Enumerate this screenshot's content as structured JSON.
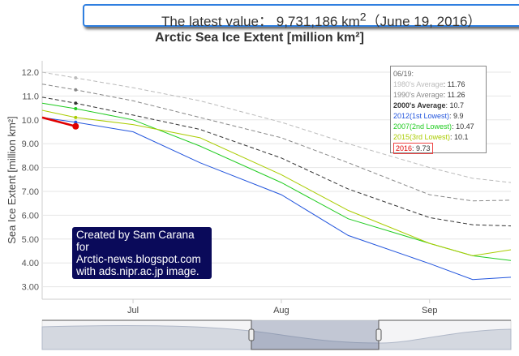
{
  "header": {
    "latest_label": "The latest value：",
    "latest_value": "9,731,186",
    "latest_unit": "km",
    "latest_sup": "2",
    "latest_date": "（June 19, 2016）"
  },
  "credit": [
    "Created by Sam Carana for",
    "Arctic-news.blogspot.com",
    "with ads.nipr.ac.jp image."
  ],
  "chart_data": {
    "type": "line",
    "title": "Arctic Sea Ice Extent [million km²]",
    "ylabel": "Sea Ice Extent [million km²]",
    "ylim": [
      2.5,
      12.5
    ],
    "yticks": [
      "12.0",
      "11.0",
      "10.0",
      "9.00",
      "8.00",
      "7.00",
      "6.00",
      "5.00",
      "4.00",
      "3.00"
    ],
    "ytick_values": [
      12,
      11,
      10,
      9,
      8,
      7,
      6,
      5,
      4,
      3
    ],
    "xlim": [
      "2016-06-12",
      "2016-09-18"
    ],
    "xticks": [
      {
        "label": "Jul",
        "date": "2016-07-01"
      },
      {
        "label": "Aug",
        "date": "2016-08-01"
      },
      {
        "label": "Sep",
        "date": "2016-09-01"
      }
    ],
    "grid": "horizontal",
    "legend": {
      "date_label": "06/19:",
      "placement": "top-right"
    },
    "dates": [
      "2016-06-12",
      "2016-06-19",
      "2016-07-01",
      "2016-07-15",
      "2016-08-01",
      "2016-08-15",
      "2016-09-01",
      "2016-09-10",
      "2016-09-18"
    ],
    "series": [
      {
        "name": "1980's Average",
        "color": "#bbbbbb",
        "dash": true,
        "value_0619": "11.76",
        "values": [
          12.0,
          11.76,
          11.35,
          10.8,
          9.9,
          9.0,
          8.0,
          7.55,
          7.37
        ]
      },
      {
        "name": "1990's Average",
        "color": "#888888",
        "dash": true,
        "value_0619": "11.26",
        "values": [
          11.5,
          11.26,
          10.8,
          10.1,
          9.25,
          8.2,
          6.86,
          6.6,
          6.63
        ]
      },
      {
        "name": "2000's Average",
        "color": "#333333",
        "dash": true,
        "value_0619": "10.7",
        "values": [
          10.95,
          10.7,
          10.2,
          9.6,
          8.4,
          7.1,
          5.9,
          5.6,
          5.55
        ]
      },
      {
        "name": "2012(1st Lowest)",
        "color": "#2255dd",
        "dash": false,
        "value_0619": "9.9",
        "values": [
          10.1,
          9.9,
          9.5,
          8.2,
          6.86,
          5.15,
          3.97,
          3.3,
          3.4
        ]
      },
      {
        "name": "2007(2nd Lowest)",
        "color": "#22cc22",
        "dash": false,
        "value_0619": "10.47",
        "values": [
          10.7,
          10.47,
          10.0,
          8.9,
          7.37,
          5.85,
          4.82,
          4.3,
          4.1
        ]
      },
      {
        "name": "2015(3rd Lowest)",
        "color": "#aacc00",
        "dash": false,
        "value_0619": "10.1",
        "values": [
          10.4,
          10.1,
          9.8,
          9.25,
          7.7,
          6.2,
          4.82,
          4.3,
          4.55
        ]
      },
      {
        "name": "2016",
        "color": "#e00000",
        "dash": false,
        "value_0619": "9.73",
        "values": [
          10.1,
          9.73,
          null,
          null,
          null,
          null,
          null,
          null,
          null
        ]
      }
    ]
  }
}
